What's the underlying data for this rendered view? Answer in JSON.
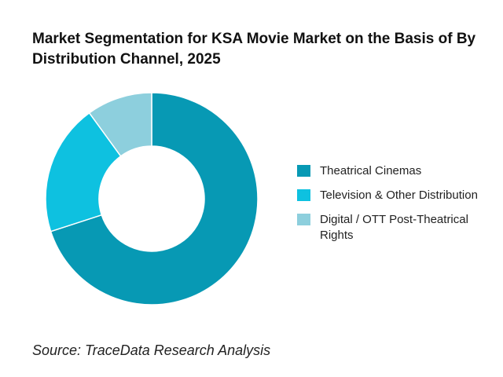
{
  "chart_data": {
    "type": "pie",
    "title": "Market Segmentation for KSA Movie Market on the Basis of By Distribution Channel, 2025",
    "categories": [
      "Theatrical Cinemas",
      "Television & Other Distribution",
      "Digital / OTT Post-Theatrical Rights"
    ],
    "values": [
      70,
      20,
      10
    ],
    "colors": [
      "#0799b4",
      "#0ec1e0",
      "#8dcfdd"
    ],
    "donut": true,
    "legend_position": "right"
  },
  "source": "Source: TraceData Research Analysis"
}
